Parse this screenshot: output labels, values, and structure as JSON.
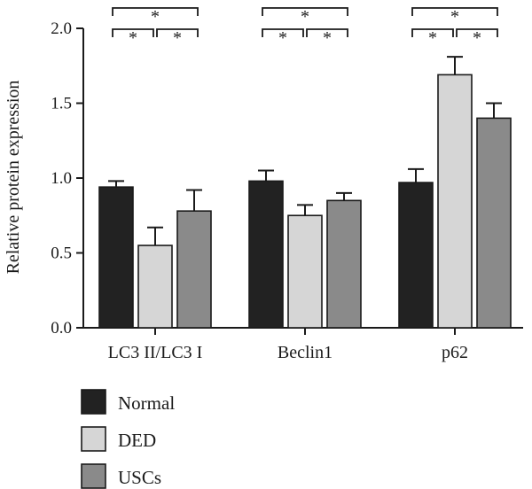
{
  "chart_data": {
    "type": "bar",
    "ylabel": "Relative protein expression",
    "ylim": [
      0,
      2.0
    ],
    "yticks": [
      "0.0",
      "0.5",
      "1.0",
      "1.5",
      "2.0"
    ],
    "categories": [
      "LC3 II/LC3 I",
      "Beclin1",
      "p62"
    ],
    "series": [
      {
        "name": "Normal",
        "color": "#222222",
        "values": [
          0.94,
          0.98,
          0.97
        ],
        "errors": [
          0.04,
          0.07,
          0.09
        ]
      },
      {
        "name": "DED",
        "color": "#d6d6d6",
        "values": [
          0.55,
          0.75,
          1.69
        ],
        "errors": [
          0.12,
          0.07,
          0.12
        ]
      },
      {
        "name": "USCs",
        "color": "#8a8a8a",
        "values": [
          0.78,
          0.85,
          1.4
        ],
        "errors": [
          0.14,
          0.05,
          0.1
        ]
      }
    ],
    "significance": [
      {
        "category": 0,
        "from": 0,
        "to": 2,
        "label": "*"
      },
      {
        "category": 0,
        "from": 0,
        "to": 1,
        "label": "*"
      },
      {
        "category": 0,
        "from": 1,
        "to": 2,
        "label": "*"
      },
      {
        "category": 1,
        "from": 0,
        "to": 2,
        "label": "*"
      },
      {
        "category": 1,
        "from": 0,
        "to": 1,
        "label": "*"
      },
      {
        "category": 1,
        "from": 1,
        "to": 2,
        "label": "*"
      },
      {
        "category": 2,
        "from": 0,
        "to": 2,
        "label": "*"
      },
      {
        "category": 2,
        "from": 0,
        "to": 1,
        "label": "*"
      },
      {
        "category": 2,
        "from": 1,
        "to": 2,
        "label": "*"
      }
    ],
    "legend_position": "bottom-left"
  }
}
